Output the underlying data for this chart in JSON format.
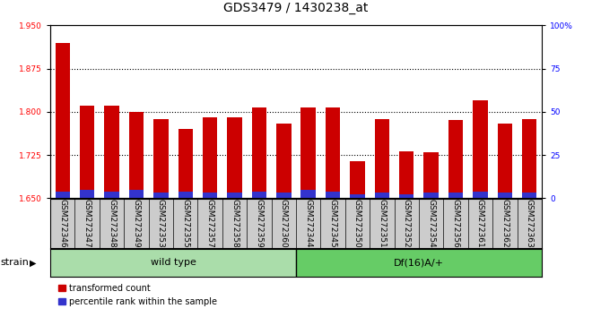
{
  "title": "GDS3479 / 1430238_at",
  "categories": [
    "GSM272346",
    "GSM272347",
    "GSM272348",
    "GSM272349",
    "GSM272353",
    "GSM272355",
    "GSM272357",
    "GSM272358",
    "GSM272359",
    "GSM272360",
    "GSM272344",
    "GSM272345",
    "GSM272350",
    "GSM272351",
    "GSM272352",
    "GSM272354",
    "GSM272356",
    "GSM272361",
    "GSM272362",
    "GSM272363"
  ],
  "red_values": [
    1.92,
    1.81,
    1.81,
    1.8,
    1.787,
    1.77,
    1.79,
    1.79,
    1.808,
    1.78,
    1.808,
    1.808,
    1.714,
    1.787,
    1.732,
    1.73,
    1.786,
    1.82,
    1.78,
    1.787
  ],
  "blue_values": [
    4,
    5,
    4,
    5,
    3,
    4,
    3,
    3,
    4,
    3,
    5,
    4,
    2,
    3,
    2,
    3,
    3,
    4,
    3,
    3
  ],
  "ylim_left": [
    1.65,
    1.95
  ],
  "ylim_right": [
    0,
    100
  ],
  "yticks_left": [
    1.65,
    1.725,
    1.8,
    1.875,
    1.95
  ],
  "yticks_right": [
    0,
    25,
    50,
    75,
    100
  ],
  "grid_values": [
    1.875,
    1.8,
    1.725
  ],
  "wild_type_count": 10,
  "df_count": 10,
  "group1_label": "wild type",
  "group2_label": "Df(16)A/+",
  "strain_label": "strain",
  "bar_color_red": "#cc0000",
  "bar_color_blue": "#3333cc",
  "group1_color": "#aaddaa",
  "group2_color": "#66cc66",
  "tick_label_bg": "#cccccc",
  "legend_red": "transformed count",
  "legend_blue": "percentile rank within the sample",
  "title_fontsize": 10,
  "tick_fontsize": 6.5,
  "label_fontsize": 8
}
